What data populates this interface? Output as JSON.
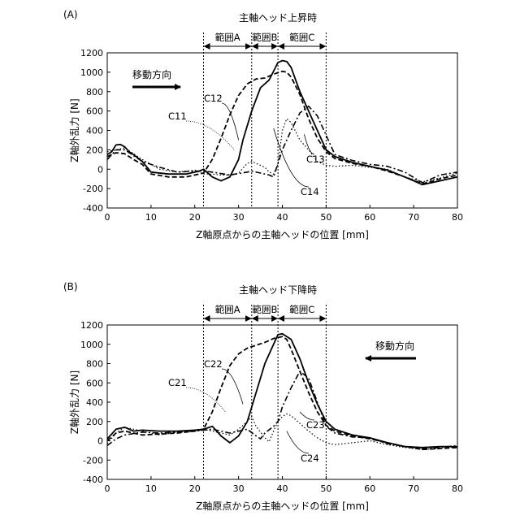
{
  "chart_data": [
    {
      "panel_label": "(A)",
      "type": "line",
      "title": "主軸ヘッド上昇時",
      "xlabel": "Z軸原点からの主軸ヘッドの位置 [mm]",
      "ylabel": "Z軸外乱力 [N]",
      "xlim": [
        0,
        80
      ],
      "ylim": [
        -400,
        1200
      ],
      "xticks": [
        0,
        10,
        20,
        30,
        40,
        50,
        60,
        70,
        80
      ],
      "yticks": [
        -400,
        -200,
        0,
        200,
        400,
        600,
        800,
        1000,
        1200
      ],
      "grid": false,
      "direction_text": "移動方向",
      "direction_arrow": "right",
      "range_lines": [
        22,
        33,
        39,
        50
      ],
      "ranges": [
        {
          "label": "範囲A",
          "from": 22,
          "to": 33
        },
        {
          "label": "範囲B",
          "from": 33,
          "to": 39
        },
        {
          "label": "範囲C",
          "from": 39,
          "to": 50
        }
      ],
      "annotations": [
        {
          "text": "C11",
          "series": 0
        },
        {
          "text": "C12",
          "series": 1
        },
        {
          "text": "C13",
          "series": 2
        },
        {
          "text": "C14",
          "series": 3
        }
      ],
      "series": [
        {
          "name": "C11",
          "style": "dashed",
          "x": [
            0,
            2,
            4,
            6,
            8,
            10,
            14,
            18,
            22,
            24,
            26,
            28,
            30,
            32,
            34,
            36,
            38,
            40,
            41,
            42,
            44,
            46,
            48,
            50,
            52,
            56,
            60,
            64,
            68,
            72,
            76,
            80
          ],
          "y": [
            130,
            170,
            160,
            100,
            50,
            -50,
            -80,
            -80,
            -40,
            100,
            320,
            560,
            760,
            880,
            930,
            940,
            980,
            1010,
            1000,
            950,
            770,
            520,
            320,
            180,
            110,
            60,
            30,
            -20,
            -80,
            -150,
            -100,
            -60
          ]
        },
        {
          "name": "C12",
          "style": "solid",
          "x": [
            0,
            1,
            2,
            3,
            4,
            5,
            6,
            8,
            10,
            14,
            18,
            21,
            22,
            24,
            26,
            28,
            30,
            31,
            33,
            35,
            37,
            39,
            40,
            41,
            42,
            44,
            46,
            48,
            50,
            52,
            56,
            60,
            64,
            68,
            72,
            76,
            80
          ],
          "y": [
            150,
            180,
            250,
            255,
            230,
            180,
            150,
            80,
            -30,
            -50,
            -50,
            -20,
            0,
            -80,
            -120,
            -80,
            100,
            300,
            600,
            840,
            920,
            1100,
            1120,
            1110,
            1050,
            800,
            600,
            400,
            200,
            130,
            70,
            30,
            -10,
            -80,
            -160,
            -120,
            -80
          ]
        },
        {
          "name": "C13",
          "style": "dash-dot",
          "x": [
            0,
            2,
            4,
            6,
            8,
            12,
            16,
            20,
            22,
            24,
            28,
            32,
            33,
            35,
            37,
            38,
            39,
            40,
            42,
            44,
            46,
            48,
            50,
            52,
            56,
            60,
            64,
            68,
            72,
            76,
            80
          ],
          "y": [
            100,
            200,
            200,
            140,
            80,
            20,
            -30,
            -20,
            -20,
            -30,
            -60,
            -30,
            -20,
            -40,
            -60,
            -80,
            60,
            200,
            400,
            580,
            650,
            550,
            350,
            150,
            90,
            50,
            30,
            -30,
            -140,
            -60,
            -30
          ]
        },
        {
          "name": "C14",
          "style": "dotted",
          "x": [
            0,
            4,
            8,
            12,
            16,
            20,
            22,
            24,
            26,
            28,
            30,
            32,
            33,
            34,
            36,
            37,
            38,
            39,
            40,
            41,
            42,
            44,
            46,
            48,
            50,
            52,
            56,
            60,
            64,
            68,
            72,
            76,
            80
          ],
          "y": [
            180,
            220,
            100,
            0,
            -30,
            -10,
            -50,
            -50,
            -60,
            -60,
            -40,
            60,
            80,
            60,
            20,
            -30,
            -50,
            50,
            400,
            520,
            480,
            300,
            200,
            80,
            40,
            30,
            40,
            20,
            0,
            -80,
            -130,
            -90,
            -40
          ]
        }
      ]
    },
    {
      "panel_label": "(B)",
      "type": "line",
      "title": "主軸ヘッド下降時",
      "xlabel": "Z軸原点からの主軸ヘッドの位置 [mm]",
      "ylabel": "Z軸外乱力 [N]",
      "xlim": [
        0,
        80
      ],
      "ylim": [
        -400,
        1200
      ],
      "xticks": [
        0,
        10,
        20,
        30,
        40,
        50,
        60,
        70,
        80
      ],
      "yticks": [
        -400,
        -200,
        0,
        200,
        400,
        600,
        800,
        1000,
        1200
      ],
      "grid": false,
      "direction_text": "移動方向",
      "direction_arrow": "left",
      "range_lines": [
        22,
        33,
        39,
        50
      ],
      "ranges": [
        {
          "label": "範囲A",
          "from": 22,
          "to": 33
        },
        {
          "label": "範囲B",
          "from": 33,
          "to": 39
        },
        {
          "label": "範囲C",
          "from": 39,
          "to": 50
        }
      ],
      "annotations": [
        {
          "text": "C21",
          "series": 0
        },
        {
          "text": "C22",
          "series": 1
        },
        {
          "text": "C23",
          "series": 2
        },
        {
          "text": "C24",
          "series": 3
        }
      ],
      "series": [
        {
          "name": "C21",
          "style": "dashed",
          "x": [
            0,
            2,
            4,
            6,
            8,
            12,
            16,
            20,
            22,
            24,
            26,
            28,
            30,
            32,
            34,
            36,
            38,
            40,
            41,
            42,
            44,
            46,
            48,
            50,
            52,
            56,
            60,
            64,
            68,
            72,
            76,
            80
          ],
          "y": [
            0,
            80,
            100,
            80,
            60,
            70,
            80,
            100,
            120,
            300,
            550,
            780,
            900,
            960,
            990,
            1020,
            1060,
            1080,
            1050,
            950,
            720,
            500,
            300,
            160,
            100,
            50,
            20,
            -20,
            -60,
            -90,
            -80,
            -70
          ]
        },
        {
          "name": "C22",
          "style": "solid",
          "x": [
            0,
            2,
            4,
            6,
            8,
            12,
            16,
            20,
            22,
            24,
            26,
            28,
            30,
            32,
            34,
            36,
            38,
            39,
            40,
            41,
            42,
            44,
            46,
            48,
            50,
            52,
            56,
            60,
            64,
            68,
            72,
            76,
            80
          ],
          "y": [
            20,
            120,
            140,
            100,
            110,
            100,
            100,
            110,
            120,
            150,
            50,
            -20,
            50,
            200,
            500,
            800,
            1000,
            1100,
            1110,
            1080,
            1050,
            850,
            600,
            380,
            200,
            120,
            60,
            30,
            -20,
            -60,
            -70,
            -60,
            -60
          ]
        },
        {
          "name": "C23",
          "style": "dash-dot",
          "x": [
            0,
            2,
            4,
            8,
            12,
            16,
            20,
            24,
            28,
            30,
            32,
            34,
            35,
            36,
            38,
            39,
            40,
            42,
            44,
            46,
            48,
            50,
            52,
            56,
            60,
            64,
            68,
            72,
            76,
            80
          ],
          "y": [
            -50,
            20,
            60,
            90,
            80,
            90,
            100,
            120,
            80,
            100,
            120,
            50,
            20,
            80,
            150,
            200,
            350,
            550,
            720,
            650,
            400,
            150,
            80,
            40,
            30,
            -30,
            -60,
            -80,
            -70,
            -50
          ]
        },
        {
          "name": "C24",
          "style": "dotted",
          "x": [
            0,
            2,
            4,
            8,
            12,
            16,
            20,
            22,
            24,
            28,
            30,
            32,
            33,
            34,
            36,
            37,
            38,
            39,
            40,
            41,
            42,
            44,
            46,
            48,
            50,
            52,
            56,
            60,
            64,
            68,
            72,
            76,
            80
          ],
          "y": [
            -30,
            80,
            140,
            100,
            60,
            90,
            110,
            120,
            100,
            60,
            120,
            200,
            250,
            150,
            30,
            -10,
            100,
            200,
            250,
            280,
            260,
            180,
            100,
            30,
            -20,
            -40,
            -20,
            0,
            -40,
            -70,
            -90,
            -80,
            -60
          ]
        }
      ]
    }
  ]
}
